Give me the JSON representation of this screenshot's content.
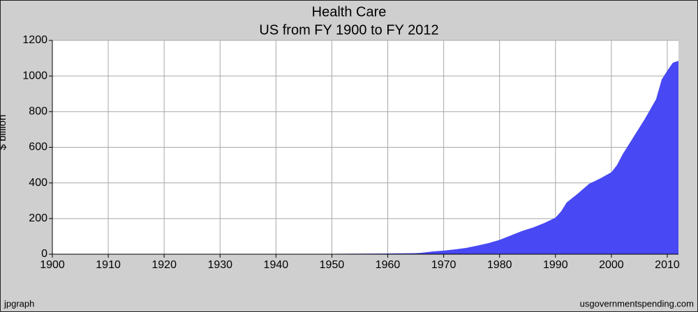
{
  "chart_data": {
    "type": "area",
    "title": "Health Care",
    "subtitle": "US from FY 1900 to FY 2012",
    "y_label": "$ billion",
    "credit_left": "jpgraph",
    "credit_right": "usgovernmentspending.com",
    "color": "#4848f4",
    "grid": true,
    "x": [
      1900,
      1947,
      1950,
      1955,
      1960,
      1965,
      1966,
      1968,
      1970,
      1972,
      1974,
      1976,
      1978,
      1980,
      1982,
      1984,
      1986,
      1988,
      1990,
      1991,
      1992,
      1994,
      1996,
      1998,
      2000,
      2001,
      2002,
      2004,
      2006,
      2008,
      2009,
      2010,
      2011,
      2012
    ],
    "values": [
      0,
      1,
      2,
      3,
      4,
      6,
      8,
      15,
      20,
      27,
      35,
      48,
      62,
      80,
      105,
      130,
      150,
      175,
      205,
      240,
      290,
      340,
      395,
      425,
      460,
      500,
      560,
      660,
      760,
      870,
      980,
      1030,
      1075,
      1085
    ],
    "xlim": [
      1900,
      2012
    ],
    "xticks": [
      1900,
      1910,
      1920,
      1930,
      1940,
      1950,
      1960,
      1970,
      1980,
      1990,
      2000,
      2010
    ],
    "ylim": [
      0,
      1200
    ],
    "yticks": [
      0,
      200,
      400,
      600,
      800,
      1000,
      1200
    ]
  }
}
